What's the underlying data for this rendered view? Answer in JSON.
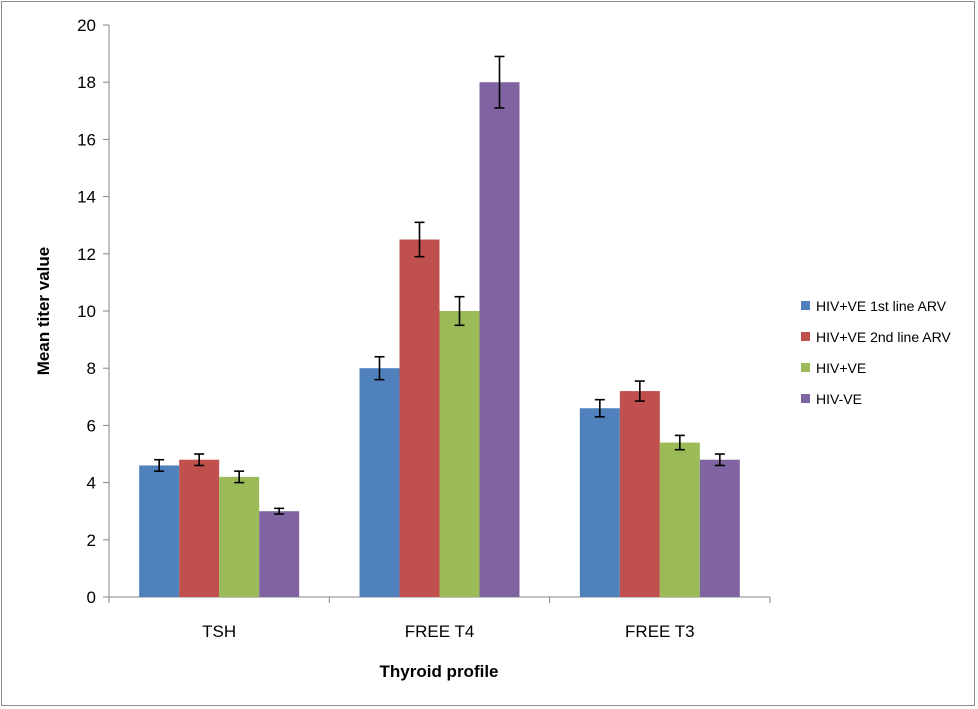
{
  "chart_data": {
    "type": "bar",
    "title": "",
    "xlabel": "Thyroid profile",
    "ylabel": "Mean titer value",
    "ylim": [
      0,
      20
    ],
    "yticks": [
      0,
      2,
      4,
      6,
      8,
      10,
      12,
      14,
      16,
      18,
      20
    ],
    "grid": false,
    "legend_position": "right",
    "categories": [
      "TSH",
      "FREE T4",
      "FREE T3"
    ],
    "series": [
      {
        "name": "HIV+VE 1st line ARV",
        "color": "#4f81bd",
        "values": [
          4.6,
          8.0,
          6.6
        ],
        "errors": [
          0.2,
          0.4,
          0.3
        ]
      },
      {
        "name": "HIV+VE 2nd line ARV",
        "color": "#c0504d",
        "values": [
          4.8,
          12.5,
          7.2
        ],
        "errors": [
          0.2,
          0.6,
          0.35
        ]
      },
      {
        "name": "HIV+VE",
        "color": "#9bbb59",
        "values": [
          4.2,
          10.0,
          5.4
        ],
        "errors": [
          0.2,
          0.5,
          0.25
        ]
      },
      {
        "name": "HIV-VE",
        "color": "#8064a2",
        "values": [
          3.0,
          18.0,
          4.8
        ],
        "errors": [
          0.1,
          0.9,
          0.2
        ]
      }
    ]
  }
}
